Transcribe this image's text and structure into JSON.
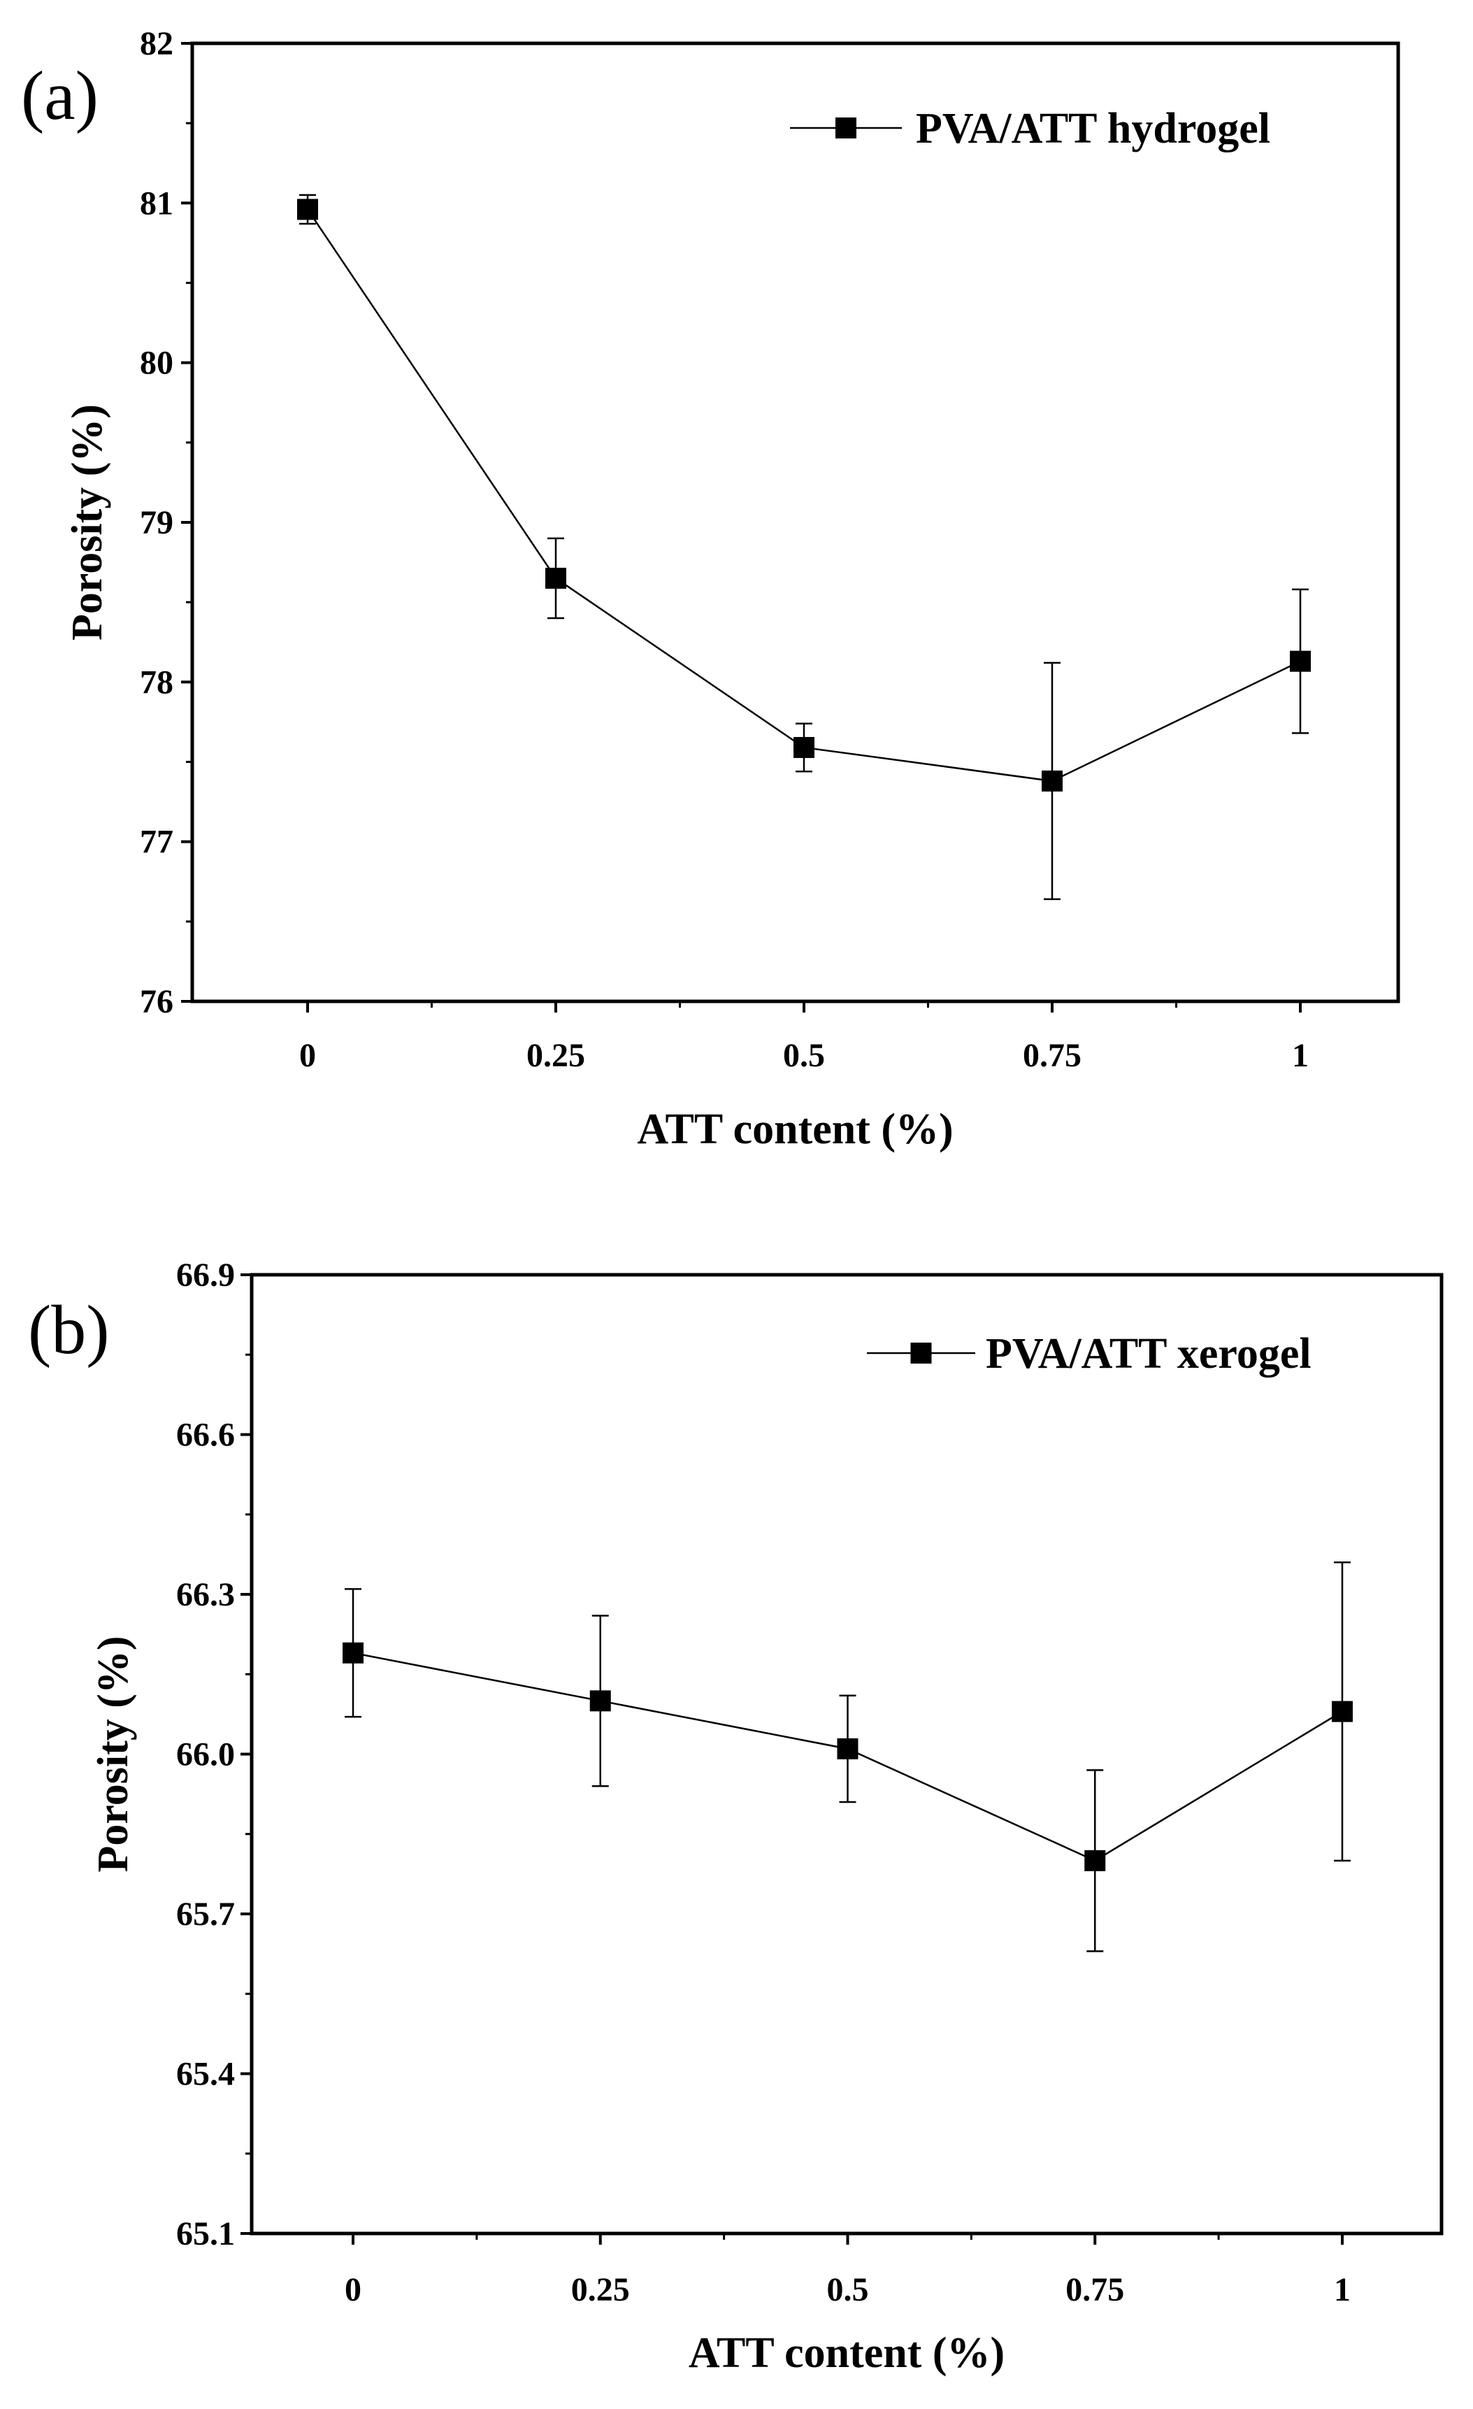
{
  "chart_data": [
    {
      "type": "line",
      "panel_label": "(a)",
      "title": "",
      "xlabel": "ATT content (%)",
      "ylabel": "Porosity (%)",
      "x": [
        0,
        0.25,
        0.5,
        0.75,
        1
      ],
      "xtick_labels": [
        "0",
        "0.25",
        "0.5",
        "0.75",
        "1"
      ],
      "ylim": [
        76,
        82
      ],
      "yticks": [
        76,
        77,
        78,
        79,
        80,
        81,
        82
      ],
      "ytick_labels": [
        "76",
        "77",
        "78",
        "79",
        "80",
        "81",
        "82"
      ],
      "grid": false,
      "legend_position": "top-right",
      "series": [
        {
          "name": "PVA/ATT hydrogel",
          "marker": "square",
          "values": [
            80.96,
            78.65,
            77.59,
            77.38,
            78.13
          ],
          "errors": [
            0.09,
            0.25,
            0.15,
            0.74,
            0.45
          ]
        }
      ]
    },
    {
      "type": "line",
      "panel_label": "(b)",
      "title": "",
      "xlabel": "ATT content (%)",
      "ylabel": "Porosity (%)",
      "x": [
        0,
        0.25,
        0.5,
        0.75,
        1
      ],
      "xtick_labels": [
        "0",
        "0.25",
        "0.5",
        "0.75",
        "1"
      ],
      "ylim": [
        65.1,
        66.9
      ],
      "yticks": [
        65.1,
        65.4,
        65.7,
        66.0,
        66.3,
        66.6,
        66.9
      ],
      "ytick_labels": [
        "65.1",
        "65.4",
        "65.7",
        "66.0",
        "66.3",
        "66.6",
        "66.9"
      ],
      "grid": false,
      "legend_position": "top-right",
      "series": [
        {
          "name": "PVA/ATT xerogel",
          "marker": "square",
          "values": [
            66.19,
            66.1,
            66.01,
            65.8,
            66.08
          ],
          "errors": [
            0.12,
            0.16,
            0.1,
            0.17,
            0.28
          ]
        }
      ]
    }
  ]
}
